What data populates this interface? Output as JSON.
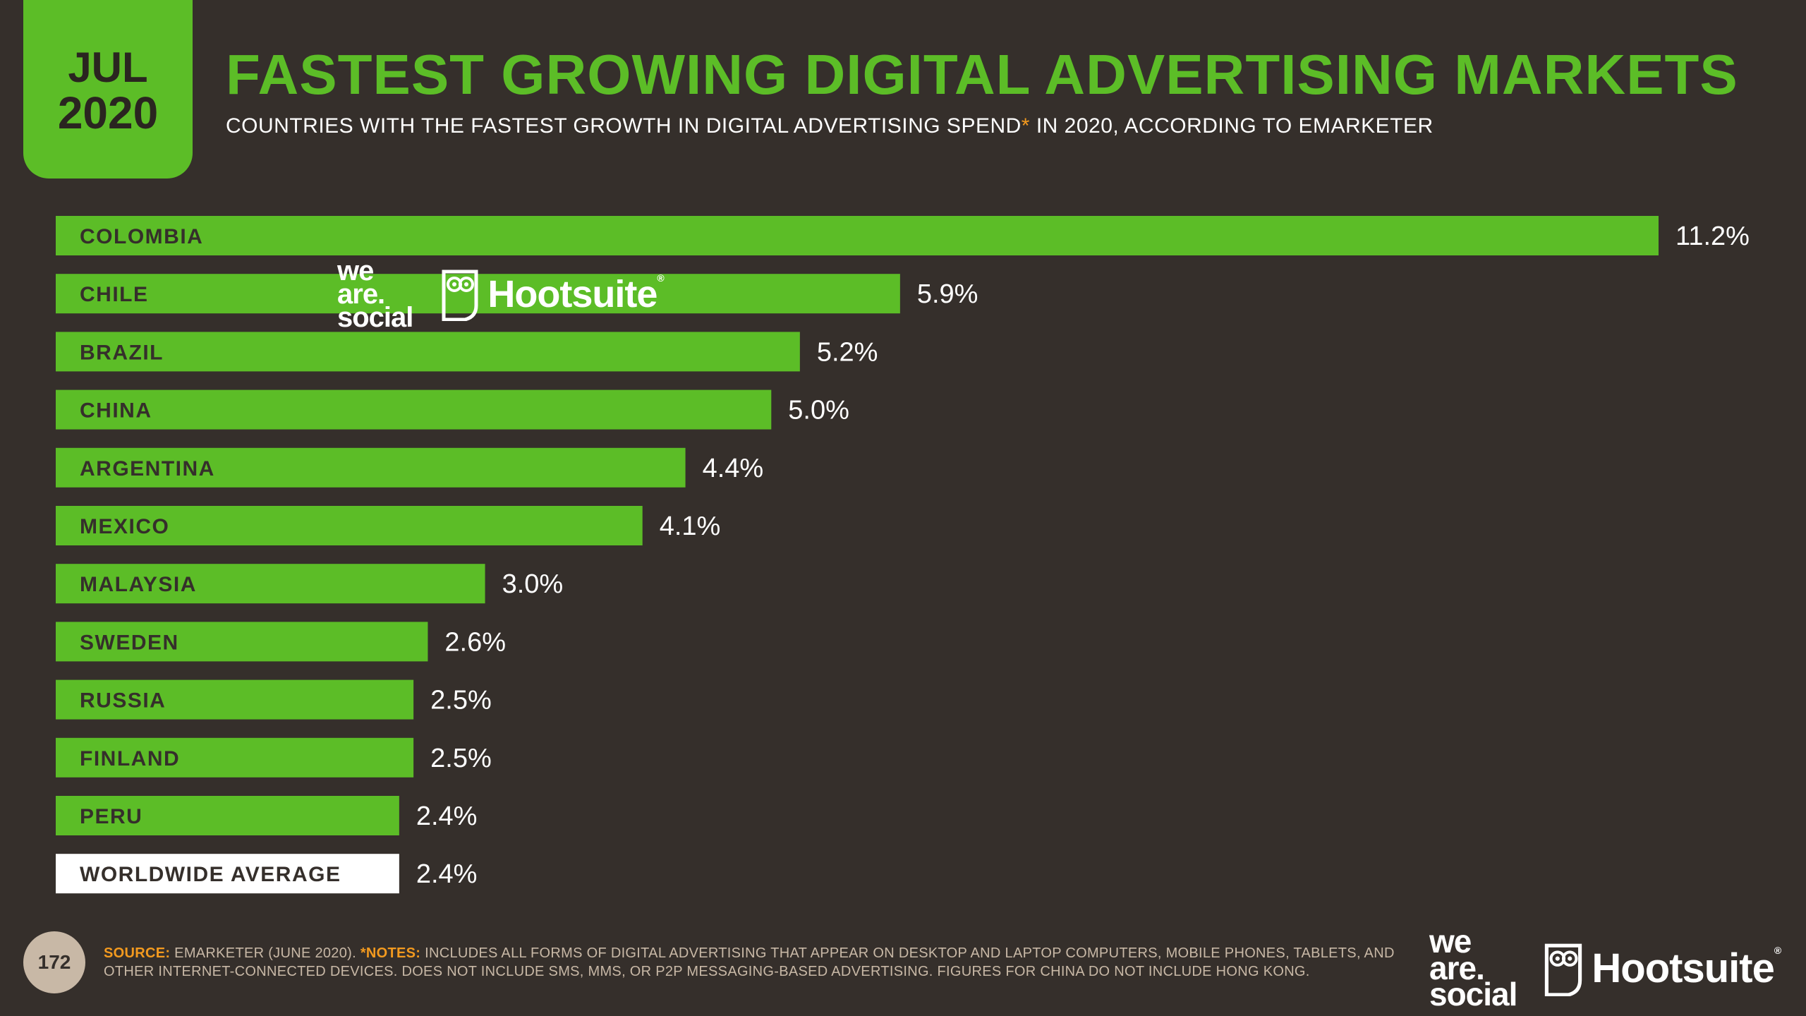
{
  "header": {
    "month": "JUL",
    "year": "2020",
    "title": "FASTEST GROWING DIGITAL ADVERTISING MARKETS",
    "subtitle_pre": "COUNTRIES WITH THE FASTEST GROWTH IN DIGITAL ADVERTISING SPEND",
    "subtitle_star": "*",
    "subtitle_post": " IN 2020, ACCORDING TO EMARKETER"
  },
  "colors": {
    "background": "#352f2b",
    "accent_green": "#5cbd27",
    "highlight_bar": "#ffffff",
    "label_dark": "#352f2b",
    "note_orange": "#f39a1f",
    "muted": "#c8b8a6"
  },
  "chart_data": {
    "type": "bar",
    "orientation": "horizontal",
    "title": "FASTEST GROWING DIGITAL ADVERTISING MARKETS",
    "categories": [
      "COLOMBIA",
      "CHILE",
      "BRAZIL",
      "CHINA",
      "ARGENTINA",
      "MEXICO",
      "MALAYSIA",
      "SWEDEN",
      "RUSSIA",
      "FINLAND",
      "PERU",
      "WORLDWIDE AVERAGE"
    ],
    "values": [
      11.2,
      5.9,
      5.2,
      5.0,
      4.4,
      4.1,
      3.0,
      2.6,
      2.5,
      2.5,
      2.4,
      2.4
    ],
    "value_labels": [
      "11.2%",
      "5.9%",
      "5.2%",
      "5.0%",
      "4.4%",
      "4.1%",
      "3.0%",
      "2.6%",
      "2.5%",
      "2.5%",
      "2.4%",
      "2.4%"
    ],
    "highlight_index": 11,
    "unit": "%",
    "xlim": [
      0,
      11.2
    ]
  },
  "watermark": {
    "was_line1": "we",
    "was_line2": "are.",
    "was_line3": "social",
    "hootsuite": "Hootsuite",
    "reg": "®"
  },
  "footer": {
    "page_number": "172",
    "source_label": "SOURCE:",
    "source_text": " EMARKETER (JUNE 2020). ",
    "notes_label": "*NOTES:",
    "notes_text": " INCLUDES ALL FORMS OF DIGITAL ADVERTISING THAT APPEAR ON DESKTOP AND LAPTOP COMPUTERS, MOBILE PHONES, TABLETS, AND OTHER INTERNET-CONNECTED DEVICES. DOES NOT INCLUDE SMS, MMS, OR P2P MESSAGING-BASED ADVERTISING. FIGURES FOR CHINA DO NOT INCLUDE HONG KONG."
  }
}
